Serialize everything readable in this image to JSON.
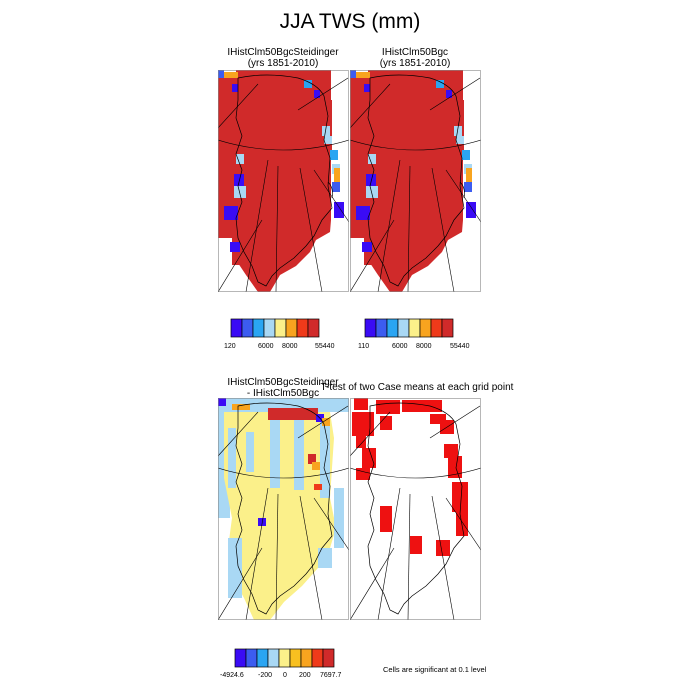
{
  "title": "JJA TWS (mm)",
  "panels": {
    "top_left": {
      "title_line1": "IHistClm50BgcSteidinger",
      "title_line2": "(yrs 1851-2010)"
    },
    "top_right": {
      "title_line1": "IHistClm50Bgc",
      "title_line2": "(yrs 1851-2010)"
    },
    "bottom_left": {
      "title_line1": "IHistClm50BgcSteidinger",
      "title_line2": "- IHistClm50Bgc"
    },
    "bottom_right": {
      "title": "T-test of two Case means at each grid point"
    }
  },
  "colorbars": {
    "top_left": {
      "colors": [
        "#3a0bf5",
        "#3c5cf0",
        "#2aa5f2",
        "#a9d8f4",
        "#fbf08a",
        "#f8a41f",
        "#ef3a1a",
        "#d02a2a"
      ],
      "labels": [
        "120",
        "6000",
        "8000",
        "55440"
      ]
    },
    "top_right": {
      "colors": [
        "#3a0bf5",
        "#3c5cf0",
        "#2aa5f2",
        "#a9d8f4",
        "#fbf08a",
        "#f8a41f",
        "#ef3a1a",
        "#d02a2a"
      ],
      "labels": [
        "110",
        "6000",
        "8000",
        "55440"
      ]
    },
    "diff": {
      "colors": [
        "#3a0bf5",
        "#3c5cf0",
        "#2aa5f2",
        "#a9d8f4",
        "#fbf08a",
        "#f8c020",
        "#f8a41f",
        "#ef3a1a",
        "#d02a2a"
      ],
      "labels": [
        "-4924.6",
        "-200",
        "0",
        "200",
        "7697.7"
      ]
    }
  },
  "significance_note": "Cells are significant at 0.1 level",
  "colors": {
    "ice_sheet": "#d02a2a",
    "diff_fill": "#fbf08a",
    "diff_edge": "#a9d8f4",
    "significant": "#ee1111",
    "coast": "#000000"
  }
}
